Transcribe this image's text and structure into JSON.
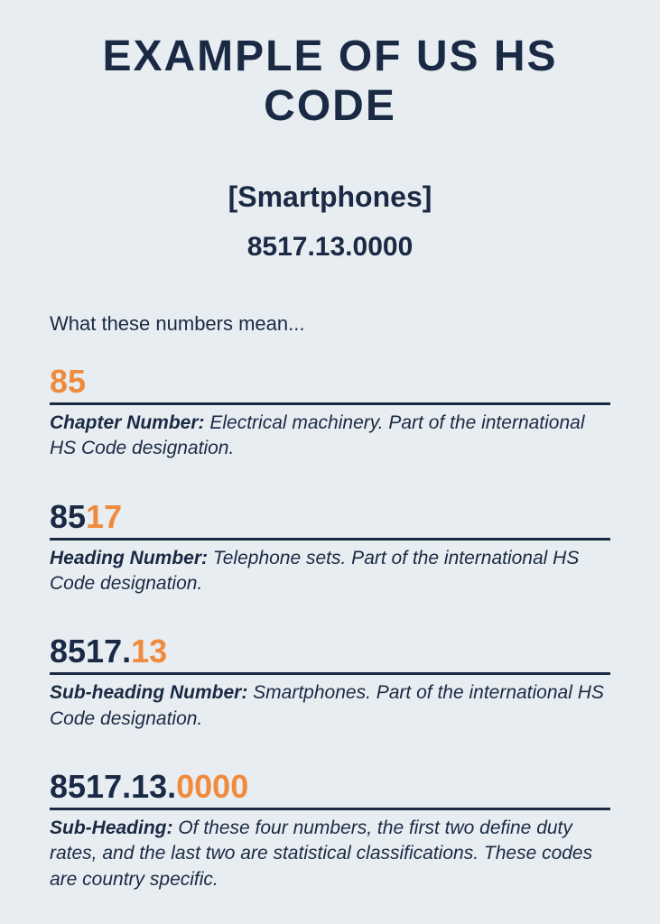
{
  "title": "Example of US HS Code",
  "subject": "[Smartphones]",
  "full_code": "8517.13.0000",
  "intro": "What these numbers mean...",
  "colors": {
    "background": "#e8edf1",
    "primary_text": "#1a2a44",
    "highlight": "#f08a3c",
    "rule": "#1a2a44"
  },
  "typography": {
    "title_fontsize": 48,
    "title_weight": 900,
    "subject_fontsize": 32,
    "code_fontsize": 30,
    "intro_fontsize": 22,
    "codeline_fontsize": 36,
    "description_fontsize": 21
  },
  "sections": [
    {
      "prefix": "",
      "highlight": "85",
      "label": "Chapter Number:",
      "text": " Electrical machinery. Part of the international HS Code designation."
    },
    {
      "prefix": "85",
      "highlight": "17",
      "label": "Heading Number:",
      "text": " Telephone sets. Part of the international HS Code designation."
    },
    {
      "prefix": "8517.",
      "highlight": "13",
      "label": "Sub-heading Number:",
      "text": " Smartphones. Part of the international HS Code designation."
    },
    {
      "prefix": "8517.13.",
      "highlight": "0000",
      "label": "Sub-Heading:",
      "text": " Of these four numbers, the first two define duty rates, and the last two are statistical classifications. These codes are country specific."
    }
  ]
}
